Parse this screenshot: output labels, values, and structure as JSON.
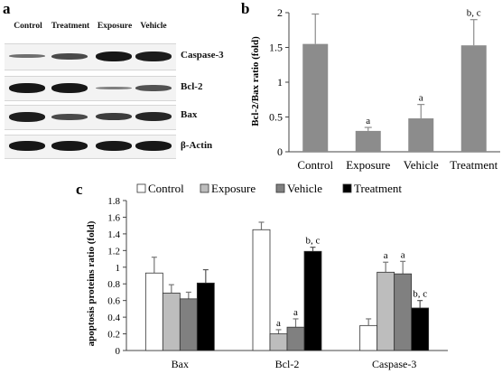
{
  "panels": {
    "a": "a",
    "b": "b",
    "c": "c"
  },
  "blot": {
    "lanes": [
      "Control",
      "Treatment",
      "Exposure",
      "Vehicle"
    ],
    "rows": [
      {
        "label": "Caspase-3",
        "intensity": [
          0.35,
          0.6,
          0.95,
          0.9
        ]
      },
      {
        "label": "Bcl-2",
        "intensity": [
          0.95,
          0.95,
          0.25,
          0.55
        ]
      },
      {
        "label": "Bax",
        "intensity": [
          0.9,
          0.6,
          0.7,
          0.85
        ]
      },
      {
        "label": "β-Actin",
        "intensity": [
          0.95,
          0.95,
          0.95,
          0.95
        ]
      }
    ]
  },
  "chart_data": [
    {
      "type": "bar",
      "panel": "b",
      "ylabel": "Bcl-2/Bax ratio (fold)",
      "ylim": [
        0,
        2
      ],
      "yticks": [
        "0",
        "0.5",
        "1",
        "1.5",
        "2"
      ],
      "categories": [
        "Control",
        "Exposure",
        "Vehicle",
        "Treatment"
      ],
      "values": [
        1.55,
        0.3,
        0.48,
        1.53
      ],
      "errors": [
        0.43,
        0.05,
        0.2,
        0.37
      ],
      "annotations": [
        "",
        "a",
        "a",
        "b, c"
      ],
      "bar_color": "#8c8c8c"
    },
    {
      "type": "bar",
      "panel": "c",
      "ylabel": "apoptosis proteins ratio (fold)",
      "ylim": [
        0,
        1.8
      ],
      "yticks": [
        "0",
        "0.2",
        "0.4",
        "0.6",
        "0.8",
        "1",
        "1.2",
        "1.4",
        "1.6",
        "1.8"
      ],
      "categories": [
        "Bax",
        "Bcl-2",
        "Caspase-3"
      ],
      "legend_position": "top",
      "series": [
        {
          "name": "Control",
          "color": "#ffffff",
          "values": [
            0.93,
            1.45,
            0.3
          ],
          "errors": [
            0.19,
            0.09,
            0.08
          ],
          "annotations": [
            "",
            "",
            ""
          ]
        },
        {
          "name": "Exposure",
          "color": "#bdbdbd",
          "values": [
            0.69,
            0.2,
            0.94
          ],
          "errors": [
            0.1,
            0.05,
            0.12
          ],
          "annotations": [
            "",
            "a",
            "a"
          ]
        },
        {
          "name": "Vehicle",
          "color": "#808080",
          "values": [
            0.62,
            0.28,
            0.92
          ],
          "errors": [
            0.08,
            0.1,
            0.15
          ],
          "annotations": [
            "",
            "a",
            "a"
          ]
        },
        {
          "name": "Treatment",
          "color": "#000000",
          "values": [
            0.81,
            1.19,
            0.51
          ],
          "errors": [
            0.16,
            0.05,
            0.09
          ],
          "annotations": [
            "",
            "b, c",
            "b, c"
          ]
        }
      ]
    }
  ]
}
